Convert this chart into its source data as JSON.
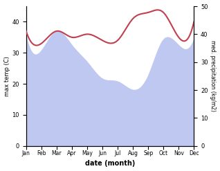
{
  "months": [
    "Jan",
    "Feb",
    "Mar",
    "Apr",
    "May",
    "Jun",
    "Jul",
    "Aug",
    "Sep",
    "Oct",
    "Nov",
    "Dec"
  ],
  "max_temp": [
    37,
    33,
    37,
    35,
    36,
    34,
    34,
    41,
    43,
    43,
    35,
    40
  ],
  "precipitation": [
    39,
    34,
    41,
    36,
    30,
    24,
    23,
    20,
    25,
    38,
    36,
    38
  ],
  "temp_color": "#c04050",
  "precip_fill_color": "#bfc8f0",
  "temp_ylim": [
    0,
    45
  ],
  "precip_ylim": [
    0,
    50
  ],
  "temp_yticks": [
    0,
    10,
    20,
    30,
    40
  ],
  "precip_yticks": [
    0,
    10,
    20,
    30,
    40,
    50
  ],
  "xlabel": "date (month)",
  "ylabel_left": "max temp (C)",
  "ylabel_right": "med. precipitation (kg/m2)",
  "title": ""
}
